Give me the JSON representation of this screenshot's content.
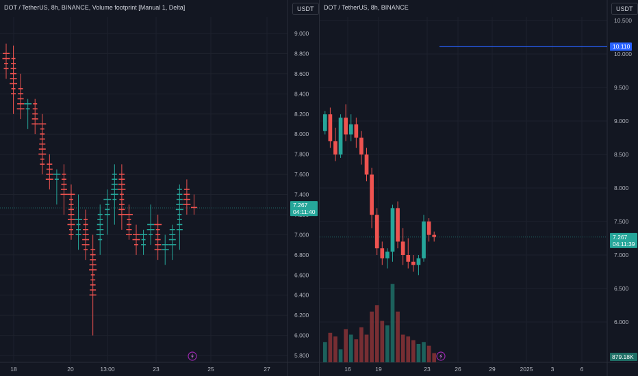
{
  "left_chart": {
    "title": "DOT / TetherUS, 8h, BINANCE, Volume footprint [Manual 1, Delta]",
    "currency": "USDT",
    "y_ticks": [
      "9.000",
      "8.800",
      "8.600",
      "8.400",
      "8.200",
      "8.000",
      "7.800",
      "7.600",
      "7.400",
      "7.200",
      "7.000",
      "6.800",
      "6.600",
      "6.400",
      "6.200",
      "6.000",
      "5.800"
    ],
    "x_ticks": [
      "18",
      "20",
      "13:00",
      "23",
      "25",
      "27"
    ],
    "price_tag": "7.267",
    "countdown": "04:11:40",
    "up_color": "#26a69a",
    "down_color": "#ef5350",
    "lightning_icon": "lightning-icon"
  },
  "right_chart": {
    "title": "DOT / TetherUS, 8h, BINANCE",
    "currency": "USDT",
    "y_ticks": [
      "10.500",
      "10.000",
      "9.500",
      "9.000",
      "8.500",
      "8.000",
      "7.500",
      "7.000",
      "6.500",
      "6.000"
    ],
    "x_ticks": [
      "16",
      "19",
      "23",
      "26",
      "29",
      "2025",
      "3",
      "6"
    ],
    "price_tag": "7.267",
    "countdown": "04:11:39",
    "line_tag": "10.110",
    "volume_tag": "879.18K",
    "up_color": "#26a69a",
    "down_color": "#ef5350",
    "line_color": "#2962ff",
    "lightning_icon": "lightning-icon"
  },
  "chart_data": [
    {
      "type": "footprint",
      "pane": "left",
      "ylim": [
        5.7,
        9.1
      ],
      "candles": [
        {
          "o": 8.8,
          "h": 8.9,
          "l": 8.55,
          "c": 8.65
        },
        {
          "o": 8.75,
          "h": 8.88,
          "l": 8.2,
          "c": 8.4
        },
        {
          "o": 8.45,
          "h": 8.6,
          "l": 8.15,
          "c": 8.25
        },
        {
          "o": 8.25,
          "h": 8.35,
          "l": 8.05,
          "c": 8.3
        },
        {
          "o": 8.3,
          "h": 8.35,
          "l": 8.0,
          "c": 8.1
        },
        {
          "o": 8.1,
          "h": 8.2,
          "l": 7.6,
          "c": 7.7
        },
        {
          "o": 7.7,
          "h": 7.8,
          "l": 7.45,
          "c": 7.55
        },
        {
          "o": 7.55,
          "h": 7.65,
          "l": 7.3,
          "c": 7.6
        },
        {
          "o": 7.6,
          "h": 7.7,
          "l": 7.2,
          "c": 7.4
        },
        {
          "o": 7.4,
          "h": 7.5,
          "l": 6.95,
          "c": 7.0
        },
        {
          "o": 7.0,
          "h": 7.4,
          "l": 6.85,
          "c": 7.15
        },
        {
          "o": 7.15,
          "h": 7.25,
          "l": 6.75,
          "c": 6.85
        },
        {
          "o": 6.85,
          "h": 7.0,
          "l": 6.0,
          "c": 6.4
        },
        {
          "o": 6.95,
          "h": 7.3,
          "l": 6.8,
          "c": 7.2
        },
        {
          "o": 7.2,
          "h": 7.45,
          "l": 7.0,
          "c": 7.35
        },
        {
          "o": 7.35,
          "h": 7.7,
          "l": 7.1,
          "c": 7.6
        },
        {
          "o": 7.6,
          "h": 7.7,
          "l": 7.05,
          "c": 7.2
        },
        {
          "o": 7.2,
          "h": 7.3,
          "l": 6.95,
          "c": 7.0
        },
        {
          "o": 7.0,
          "h": 7.1,
          "l": 6.8,
          "c": 6.9
        },
        {
          "o": 6.9,
          "h": 7.05,
          "l": 6.8,
          "c": 7.0
        },
        {
          "o": 7.0,
          "h": 7.3,
          "l": 6.9,
          "c": 7.1
        },
        {
          "o": 7.1,
          "h": 7.2,
          "l": 6.75,
          "c": 6.85
        },
        {
          "o": 6.85,
          "h": 7.0,
          "l": 6.7,
          "c": 6.9
        },
        {
          "o": 6.9,
          "h": 7.1,
          "l": 6.75,
          "c": 7.05
        },
        {
          "o": 7.05,
          "h": 7.5,
          "l": 6.85,
          "c": 7.45
        },
        {
          "o": 7.45,
          "h": 7.55,
          "l": 7.2,
          "c": 7.3
        },
        {
          "o": 7.3,
          "h": 7.4,
          "l": 7.2,
          "c": 7.27
        }
      ]
    },
    {
      "type": "candlestick",
      "pane": "right",
      "ylim": [
        5.75,
        10.65
      ],
      "candles": [
        {
          "o": 8.85,
          "h": 9.15,
          "l": 8.8,
          "c": 9.1
        },
        {
          "o": 9.1,
          "h": 9.2,
          "l": 8.6,
          "c": 8.7
        },
        {
          "o": 8.7,
          "h": 8.9,
          "l": 8.4,
          "c": 8.5
        },
        {
          "o": 8.5,
          "h": 9.1,
          "l": 8.45,
          "c": 9.05
        },
        {
          "o": 9.05,
          "h": 9.25,
          "l": 8.7,
          "c": 8.8
        },
        {
          "o": 8.8,
          "h": 9.1,
          "l": 8.7,
          "c": 8.95
        },
        {
          "o": 8.95,
          "h": 9.05,
          "l": 8.6,
          "c": 8.75
        },
        {
          "o": 8.75,
          "h": 8.85,
          "l": 8.35,
          "c": 8.5
        },
        {
          "o": 8.5,
          "h": 8.6,
          "l": 8.1,
          "c": 8.2
        },
        {
          "o": 8.2,
          "h": 8.3,
          "l": 7.4,
          "c": 7.6
        },
        {
          "o": 7.6,
          "h": 7.7,
          "l": 7.0,
          "c": 7.1
        },
        {
          "o": 7.1,
          "h": 7.2,
          "l": 6.85,
          "c": 6.95
        },
        {
          "o": 6.95,
          "h": 7.1,
          "l": 6.8,
          "c": 7.05
        },
        {
          "o": 7.05,
          "h": 7.75,
          "l": 6.9,
          "c": 7.7
        },
        {
          "o": 7.7,
          "h": 7.8,
          "l": 7.1,
          "c": 7.2
        },
        {
          "o": 7.2,
          "h": 7.4,
          "l": 6.85,
          "c": 7.0
        },
        {
          "o": 7.0,
          "h": 7.25,
          "l": 6.8,
          "c": 6.9
        },
        {
          "o": 6.9,
          "h": 7.0,
          "l": 6.75,
          "c": 6.85
        },
        {
          "o": 6.85,
          "h": 7.0,
          "l": 6.7,
          "c": 6.95
        },
        {
          "o": 6.95,
          "h": 7.6,
          "l": 6.9,
          "c": 7.5
        },
        {
          "o": 7.5,
          "h": 7.55,
          "l": 7.2,
          "c": 7.3
        },
        {
          "o": 7.3,
          "h": 7.35,
          "l": 7.2,
          "c": 7.27
        }
      ],
      "volumes": [
        0.22,
        0.32,
        0.28,
        0.14,
        0.36,
        0.3,
        0.25,
        0.38,
        0.3,
        0.55,
        0.62,
        0.45,
        0.4,
        0.85,
        0.55,
        0.3,
        0.28,
        0.24,
        0.2,
        0.22,
        0.18,
        0.1
      ],
      "horizontal_line": 10.11,
      "current_price": 7.267
    }
  ]
}
